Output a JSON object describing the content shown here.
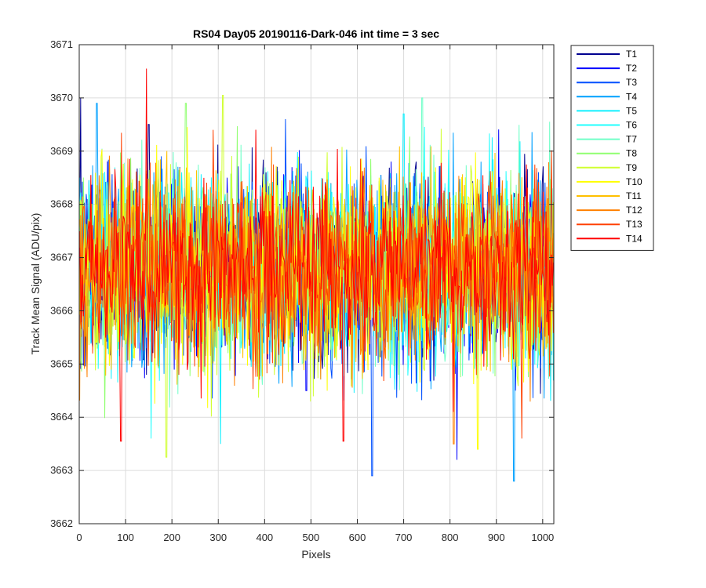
{
  "chart_data": {
    "type": "line",
    "title": "RS04 Day05 20190116-Dark-046 int time = 3 sec",
    "xlabel": "Pixels",
    "ylabel": "Track Mean Signal (ADU/pix)",
    "xlim": [
      0,
      1024
    ],
    "ylim": [
      3662,
      3671
    ],
    "x_ticks": [
      0,
      100,
      200,
      300,
      400,
      500,
      600,
      700,
      800,
      900,
      1000
    ],
    "y_ticks": [
      3662,
      3663,
      3664,
      3665,
      3666,
      3667,
      3668,
      3669,
      3670,
      3671
    ],
    "grid": true,
    "legend_position": "outside-top-right",
    "x_start": 1,
    "x_end": 1024,
    "series": [
      {
        "name": "T1",
        "color": "#00008f",
        "mean": 3666.8,
        "std": 0.9,
        "min": 3663.9,
        "max": 3670.0,
        "visible_extremes": [
          [
            3,
            3670.0
          ],
          [
            150,
            3669.5
          ]
        ]
      },
      {
        "name": "T2",
        "color": "#0000ff",
        "mean": 3666.8,
        "std": 0.9,
        "min": 3663.2,
        "max": 3669.8,
        "visible_extremes": [
          [
            815,
            3663.2
          ],
          [
            490,
            3664.5
          ]
        ]
      },
      {
        "name": "T3",
        "color": "#0050ff",
        "mean": 3666.8,
        "std": 0.9,
        "min": 3662.9,
        "max": 3669.6,
        "visible_extremes": [
          [
            632,
            3662.9
          ],
          [
            445,
            3669.6
          ]
        ]
      },
      {
        "name": "T4",
        "color": "#00a0ff",
        "mean": 3666.8,
        "std": 0.9,
        "min": 3662.8,
        "max": 3669.9,
        "visible_extremes": [
          [
            938,
            3662.8
          ],
          [
            38,
            3669.9
          ]
        ]
      },
      {
        "name": "T5",
        "color": "#10f0ff",
        "mean": 3666.8,
        "std": 0.9,
        "min": 3663.5,
        "max": 3669.8,
        "visible_extremes": [
          [
            305,
            3663.5
          ],
          [
            700,
            3669.7
          ]
        ]
      },
      {
        "name": "T6",
        "color": "#20ffff",
        "mean": 3666.8,
        "std": 0.9,
        "min": 3663.6,
        "max": 3669.8,
        "visible_extremes": [
          [
            155,
            3663.6
          ]
        ]
      },
      {
        "name": "T7",
        "color": "#70ffc8",
        "mean": 3666.8,
        "std": 0.9,
        "min": 3663.8,
        "max": 3670.0,
        "visible_extremes": [
          [
            740,
            3670.0
          ]
        ]
      },
      {
        "name": "T8",
        "color": "#90ff70",
        "mean": 3666.8,
        "std": 0.9,
        "min": 3663.8,
        "max": 3669.9,
        "visible_extremes": [
          [
            230,
            3669.9
          ]
        ]
      },
      {
        "name": "T9",
        "color": "#d0ff30",
        "mean": 3666.8,
        "std": 0.9,
        "min": 3663.2,
        "max": 3670.1,
        "visible_extremes": [
          [
            188,
            3663.25
          ],
          [
            310,
            3670.05
          ]
        ]
      },
      {
        "name": "T10",
        "color": "#ffff00",
        "mean": 3666.8,
        "std": 0.9,
        "min": 3663.4,
        "max": 3669.8,
        "visible_extremes": [
          [
            860,
            3663.4
          ]
        ]
      },
      {
        "name": "T11",
        "color": "#ffc000",
        "mean": 3666.8,
        "std": 0.9,
        "min": 3663.8,
        "max": 3669.5,
        "visible_extremes": []
      },
      {
        "name": "T12",
        "color": "#ff8000",
        "mean": 3666.8,
        "std": 0.9,
        "min": 3663.5,
        "max": 3669.4,
        "visible_extremes": [
          [
            808,
            3663.5
          ]
        ]
      },
      {
        "name": "T13",
        "color": "#ff4000",
        "mean": 3666.8,
        "std": 0.9,
        "min": 3663.6,
        "max": 3669.4,
        "visible_extremes": [
          [
            955,
            3663.6
          ]
        ]
      },
      {
        "name": "T14",
        "color": "#ff0000",
        "mean": 3666.8,
        "std": 0.85,
        "min": 3663.6,
        "max": 3670.55,
        "visible_extremes": [
          [
            145,
            3670.55
          ],
          [
            90,
            3663.55
          ],
          [
            570,
            3663.55
          ]
        ]
      }
    ]
  }
}
